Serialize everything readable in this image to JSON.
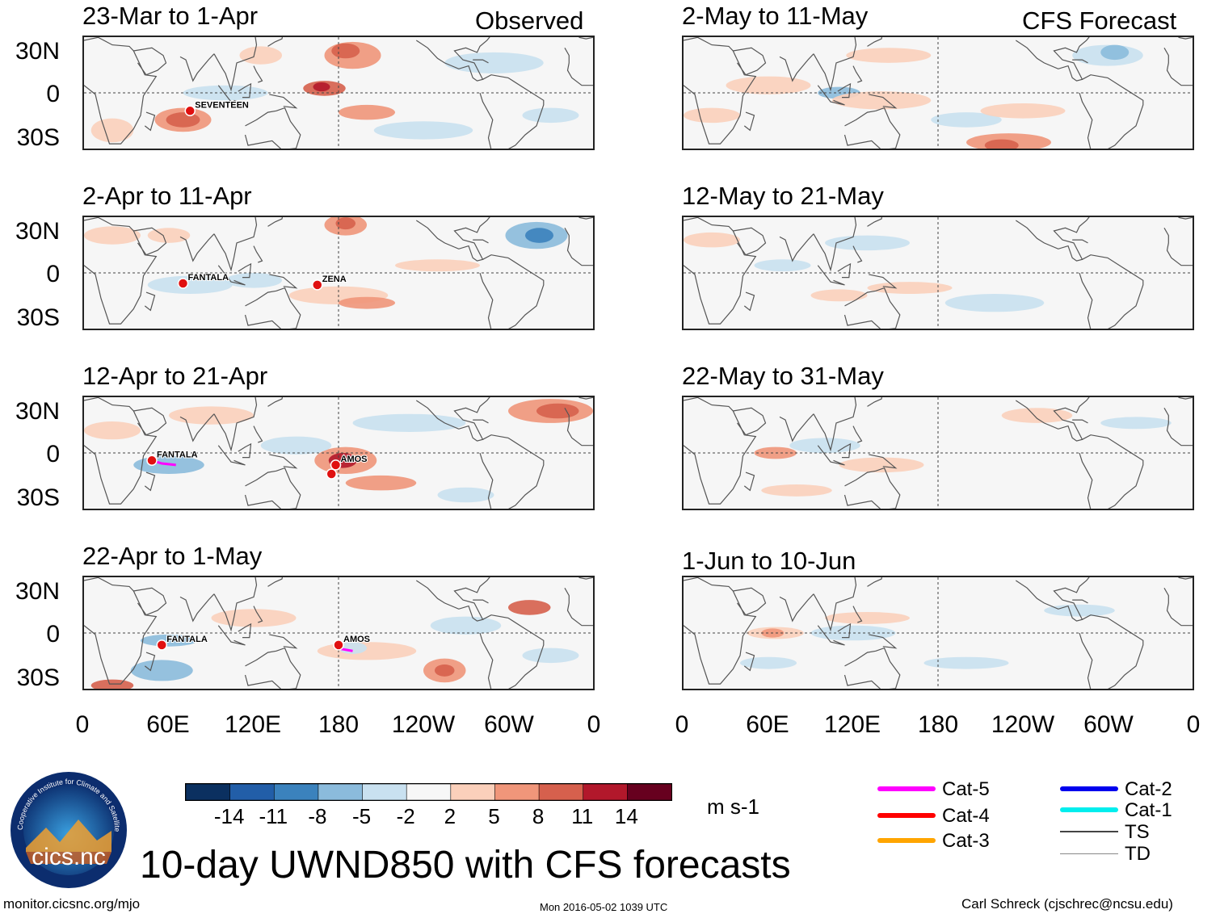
{
  "figure": {
    "main_title": "10-day UWND850 with CFS forecasts",
    "website": "monitor.cicsnc.org/mjo",
    "timestamp": "Mon 2016-05-02 1039 UTC",
    "author": "Carl Schreck (cjschrec@ncsu.edu)",
    "logo_text": "cics.nc",
    "logo_ring_text": "Cooperative Institute for Climate and Satellites",
    "observed_label": "Observed",
    "forecast_label": "CFS Forecast"
  },
  "panels": [
    {
      "title": "23-Mar to 1-Apr",
      "storms": [
        "SEVENTEEN"
      ]
    },
    {
      "title": "2-Apr to 11-Apr",
      "storms": [
        "FANTALA",
        "ZENA"
      ]
    },
    {
      "title": "12-Apr to 21-Apr",
      "storms": [
        "FANTALA",
        "AMOS"
      ]
    },
    {
      "title": "22-Apr to 1-May",
      "storms": [
        "FANTALA",
        "AMOS"
      ]
    },
    {
      "title": "2-May to 11-May",
      "storms": []
    },
    {
      "title": "12-May to 21-May",
      "storms": []
    },
    {
      "title": "22-May to 31-May",
      "storms": []
    },
    {
      "title": "1-Jun to 10-Jun",
      "storms": []
    }
  ],
  "axes": {
    "y_ticks": [
      "30N",
      "0",
      "30S"
    ],
    "x_ticks": [
      "0",
      "60E",
      "120E",
      "180",
      "120W",
      "60W",
      "0"
    ]
  },
  "colorbar": {
    "unit": "m s-1",
    "labels": [
      "-14",
      "-11",
      "-8",
      "-5",
      "-2",
      "2",
      "5",
      "8",
      "11",
      "14"
    ],
    "colors": [
      "#0b3060",
      "#225ea8",
      "#3b82bd",
      "#8bbbdc",
      "#c9e1f0",
      "#f7f7f7",
      "#fbd0bb",
      "#f0967a",
      "#d6604d",
      "#b2182b",
      "#67001f"
    ]
  },
  "storm_legend": {
    "entries": [
      {
        "label": "Cat-5",
        "color": "#ff00ff"
      },
      {
        "label": "Cat-4",
        "color": "#ff0000"
      },
      {
        "label": "Cat-3",
        "color": "#ffa500"
      },
      {
        "label": "Cat-2",
        "color": "#0000ee"
      },
      {
        "label": "Cat-1",
        "color": "#00eeee"
      },
      {
        "label": "TS",
        "color": "#444444"
      },
      {
        "label": "TD",
        "color": "#888888"
      }
    ]
  }
}
